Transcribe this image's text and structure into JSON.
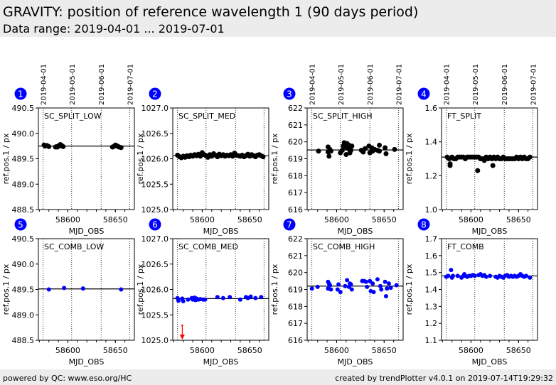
{
  "header": {
    "title": "GRAVITY: position of reference wavelength 1 (90 days period)",
    "subtitle": "Data range: 2019-04-01 ... 2019-07-01"
  },
  "footer": {
    "left": "powered by QC: www.eso.org/HC",
    "right": "created by trendPlotter v4.0.1 on 2019-07-14T19:29:32"
  },
  "colors": {
    "split": "#000000",
    "comb": "#0000ff",
    "badge": "#0000ff",
    "outlier_arrow": "#ff0000"
  },
  "chart_data": [
    {
      "type": "scatter",
      "id": 1,
      "title": "SC_SPLIT_LOW",
      "xlabel": "MJD_OBS",
      "ylabel": "ref.pos.1 / px",
      "xlim": [
        58569,
        58670
      ],
      "ylim": [
        488.5,
        490.5
      ],
      "yticks": [
        "490.5",
        "490.0",
        "489.5",
        "489.0",
        "488.5"
      ],
      "xticks": [
        "58600",
        "58650"
      ],
      "date_ticks": [
        "2019-04-01",
        "2019-05-01",
        "2019-06-01",
        "2019-07-01"
      ],
      "date_mjd": [
        58574,
        58604,
        58635,
        58665
      ],
      "reference": 489.75,
      "color": "split",
      "x": [
        58575,
        58576,
        58578,
        58580,
        58587,
        58588,
        58589,
        58590,
        58591,
        58592,
        58593,
        58594,
        58595,
        58647,
        58649,
        58650,
        58651,
        58652,
        58653,
        58654,
        58656
      ],
      "y": [
        489.77,
        489.75,
        489.76,
        489.74,
        489.73,
        489.74,
        489.73,
        489.75,
        489.76,
        489.78,
        489.77,
        489.75,
        489.74,
        489.73,
        489.75,
        489.77,
        489.76,
        489.75,
        489.74,
        489.73,
        489.72
      ]
    },
    {
      "type": "scatter",
      "id": 2,
      "title": "SC_SPLIT_MED",
      "xlabel": "MJD_OBS",
      "ylabel": "ref.pos.1 / px",
      "xlim": [
        58569,
        58670
      ],
      "ylim": [
        1025.0,
        1027.0
      ],
      "yticks": [
        "1027.0",
        "1026.5",
        "1026.0",
        "1025.5",
        "1025.0"
      ],
      "xticks": [
        "58600",
        "58650"
      ],
      "date_mjd": [
        58574,
        58604,
        58635,
        58665
      ],
      "reference": 1026.06,
      "color": "split",
      "x": [
        58574,
        58576,
        58578,
        58580,
        58582,
        58584,
        58586,
        58588,
        58590,
        58592,
        58594,
        58596,
        58598,
        58600,
        58602,
        58604,
        58606,
        58608,
        58610,
        58612,
        58614,
        58616,
        58618,
        58620,
        58622,
        58624,
        58626,
        58628,
        58630,
        58632,
        58634,
        58636,
        58638,
        58640,
        58642,
        58644,
        58646,
        58648,
        58650,
        58652,
        58654,
        58656,
        58658,
        58660,
        58662,
        58664
      ],
      "y": [
        1026.07,
        1026.04,
        1026.02,
        1026.05,
        1026.03,
        1026.06,
        1026.04,
        1026.07,
        1026.05,
        1026.08,
        1026.06,
        1026.09,
        1026.05,
        1026.12,
        1026.08,
        1026.06,
        1026.03,
        1026.08,
        1026.05,
        1026.1,
        1026.07,
        1026.04,
        1026.09,
        1026.06,
        1026.08,
        1026.05,
        1026.07,
        1026.06,
        1026.08,
        1026.05,
        1026.11,
        1026.07,
        1026.06,
        1026.05,
        1026.07,
        1026.04,
        1026.06,
        1026.09,
        1026.05,
        1026.08,
        1026.06,
        1026.04,
        1026.07,
        1026.08,
        1026.06,
        1026.04
      ]
    },
    {
      "type": "scatter",
      "id": 3,
      "title": "SC_SPLIT_HIGH",
      "xlabel": "MJD_OBS",
      "ylabel": "ref.pos.1 / px",
      "xlim": [
        58569,
        58670
      ],
      "ylim": [
        616,
        622
      ],
      "yticks": [
        "622",
        "621",
        "620",
        "619",
        "618",
        "617",
        "616"
      ],
      "xticks": [
        "58600",
        "58650"
      ],
      "date_ticks": [
        "2019-04-01",
        "2019-05-01",
        "2019-06-01",
        "2019-07-01"
      ],
      "date_mjd": [
        58574,
        58604,
        58635,
        58665
      ],
      "reference": 619.52,
      "color": "split",
      "x": [
        58581,
        58591,
        58591,
        58592,
        58593,
        58594,
        58604,
        58606,
        58607,
        58608,
        58609,
        58610,
        58611,
        58612,
        58613,
        58614,
        58615,
        58616,
        58626,
        58628,
        58630,
        58634,
        58635,
        58637,
        58638,
        58640,
        58643,
        58645,
        58645,
        58651,
        58652,
        58661
      ],
      "y": [
        619.45,
        619.7,
        619.4,
        619.15,
        619.55,
        619.45,
        619.35,
        619.5,
        619.75,
        619.95,
        619.7,
        619.25,
        619.9,
        619.6,
        619.8,
        619.35,
        619.5,
        619.75,
        619.5,
        619.4,
        619.6,
        619.75,
        619.35,
        619.65,
        619.45,
        619.55,
        619.5,
        619.8,
        619.45,
        619.65,
        619.3,
        619.55
      ]
    },
    {
      "type": "scatter",
      "id": 4,
      "title": "FT_SPLIT",
      "xlabel": "MJD_OBS",
      "ylabel": "ref.pos.1 / px",
      "xlim": [
        58569,
        58670
      ],
      "ylim": [
        1.0,
        1.6
      ],
      "yticks": [
        "1.6",
        "1.4",
        "1.2",
        "1.0"
      ],
      "xticks": [
        "58600",
        "58650"
      ],
      "date_ticks": [
        "2019-04-01",
        "2019-05-01",
        "2019-06-01",
        "2019-07-01"
      ],
      "date_mjd": [
        58574,
        58604,
        58635,
        58665
      ],
      "reference": 1.31,
      "color": "split",
      "x": [
        58575,
        58577,
        58578,
        58578,
        58580,
        58582,
        58584,
        58586,
        58588,
        58590,
        58592,
        58594,
        58596,
        58598,
        58600,
        58602,
        58604,
        58606,
        58607,
        58608,
        58610,
        58612,
        58614,
        58616,
        58618,
        58620,
        58622,
        58623,
        58624,
        58626,
        58628,
        58630,
        58632,
        58634,
        58636,
        58638,
        58640,
        58642,
        58644,
        58646,
        58648,
        58650,
        58652,
        58654,
        58656,
        58658,
        58660,
        58662
      ],
      "y": [
        1.31,
        1.3,
        1.27,
        1.26,
        1.31,
        1.3,
        1.3,
        1.31,
        1.31,
        1.31,
        1.31,
        1.3,
        1.31,
        1.31,
        1.31,
        1.31,
        1.31,
        1.31,
        1.23,
        1.31,
        1.3,
        1.3,
        1.29,
        1.31,
        1.3,
        1.31,
        1.3,
        1.26,
        1.31,
        1.3,
        1.31,
        1.3,
        1.3,
        1.31,
        1.3,
        1.3,
        1.3,
        1.3,
        1.3,
        1.3,
        1.31,
        1.3,
        1.31,
        1.3,
        1.31,
        1.3,
        1.3,
        1.31
      ]
    },
    {
      "type": "scatter",
      "id": 5,
      "title": "SC_COMB_LOW",
      "xlabel": "MJD_OBS",
      "ylabel": "ref.pos.1 / px",
      "xlim": [
        58569,
        58670
      ],
      "ylim": [
        488.5,
        490.5
      ],
      "yticks": [
        "490.5",
        "490.0",
        "489.5",
        "489.0",
        "488.5"
      ],
      "xticks": [
        "58600",
        "58650"
      ],
      "date_mjd": [
        58574,
        58604,
        58635,
        58665
      ],
      "reference": 489.51,
      "color": "comb",
      "x": [
        58580,
        58596,
        58616,
        58656
      ],
      "y": [
        489.5,
        489.53,
        489.52,
        489.5
      ]
    },
    {
      "type": "scatter",
      "id": 6,
      "title": "SC_COMB_MED",
      "xlabel": "MJD_OBS",
      "ylabel": "ref.pos.1 / px",
      "xlim": [
        58569,
        58670
      ],
      "ylim": [
        1025.0,
        1027.0
      ],
      "yticks": [
        "1027.0",
        "1026.5",
        "1026.0",
        "1025.5",
        "1025.0"
      ],
      "xticks": [
        "58600",
        "58650"
      ],
      "date_mjd": [
        58574,
        58604,
        58635,
        58665
      ],
      "reference": 1025.82,
      "color": "comb",
      "outlier": {
        "x": 58579,
        "direction": "down"
      },
      "x": [
        58574,
        58575,
        58579,
        58580,
        58585,
        58589,
        58590,
        58591,
        58592,
        58593,
        58594,
        58596,
        58598,
        58601,
        58603,
        58616,
        58622,
        58629,
        58640,
        58646,
        58648,
        58651,
        58656,
        58662
      ],
      "y": [
        1025.83,
        1025.78,
        1025.82,
        1025.77,
        1025.8,
        1025.83,
        1025.8,
        1025.82,
        1025.84,
        1025.79,
        1025.82,
        1025.8,
        1025.81,
        1025.8,
        1025.8,
        1025.85,
        1025.83,
        1025.85,
        1025.8,
        1025.85,
        1025.83,
        1025.86,
        1025.83,
        1025.85
      ]
    },
    {
      "type": "scatter",
      "id": 7,
      "title": "SC_COMB_HIGH",
      "xlabel": "MJD_OBS",
      "ylabel": "ref.pos.1 / px",
      "xlim": [
        58569,
        58670
      ],
      "ylim": [
        616,
        622
      ],
      "yticks": [
        "622",
        "621",
        "620",
        "619",
        "618",
        "617",
        "616"
      ],
      "xticks": [
        "58600",
        "58650"
      ],
      "date_mjd": [
        58574,
        58604,
        58635,
        58665
      ],
      "reference": 619.2,
      "color": "comb",
      "x": [
        58574,
        58580,
        58591,
        58591,
        58592,
        58593,
        58594,
        58601,
        58602,
        58604,
        58609,
        58611,
        58613,
        58614,
        58615,
        58616,
        58627,
        58629,
        58631,
        58632,
        58635,
        58636,
        58638,
        58639,
        58643,
        58646,
        58647,
        58651,
        58652,
        58653,
        58655,
        58657,
        58663
      ],
      "y": [
        619.05,
        619.15,
        619.45,
        619.05,
        619.35,
        619.25,
        619.0,
        619.0,
        619.3,
        618.85,
        619.2,
        619.55,
        619.15,
        619.35,
        619.3,
        619.0,
        619.5,
        619.5,
        619.45,
        619.15,
        619.5,
        618.9,
        619.35,
        618.85,
        619.6,
        619.2,
        619.0,
        619.45,
        618.6,
        619.05,
        619.35,
        619.1,
        619.25
      ]
    },
    {
      "type": "scatter",
      "id": 8,
      "title": "FT_COMB",
      "xlabel": "MJD_OBS",
      "ylabel": "ref.pos.1 / px",
      "xlim": [
        58569,
        58670
      ],
      "ylim": [
        1.1,
        1.7
      ],
      "yticks": [
        "1.7",
        "1.6",
        "1.5",
        "1.4",
        "1.3",
        "1.2",
        "1.1"
      ],
      "xticks": [
        "58600",
        "58650"
      ],
      "date_mjd": [
        58574,
        58604,
        58635,
        58665
      ],
      "reference": 1.48,
      "color": "comb",
      "x": [
        58574,
        58576,
        58579,
        58580,
        58581,
        58586,
        58590,
        58592,
        58593,
        58594,
        58596,
        58598,
        58600,
        58602,
        58604,
        58608,
        58610,
        58612,
        58614,
        58616,
        58620,
        58626,
        58628,
        58630,
        58632,
        58634,
        58636,
        58638,
        58640,
        58642,
        58644,
        58646,
        58648,
        58650,
        58652,
        58654,
        58656,
        58658,
        58662
      ],
      "y": [
        1.475,
        1.48,
        1.515,
        1.47,
        1.48,
        1.48,
        1.47,
        1.48,
        1.49,
        1.48,
        1.475,
        1.48,
        1.48,
        1.485,
        1.48,
        1.485,
        1.49,
        1.48,
        1.485,
        1.475,
        1.48,
        1.475,
        1.47,
        1.48,
        1.475,
        1.47,
        1.48,
        1.485,
        1.475,
        1.48,
        1.475,
        1.48,
        1.475,
        1.48,
        1.49,
        1.48,
        1.475,
        1.48,
        1.47
      ]
    }
  ]
}
